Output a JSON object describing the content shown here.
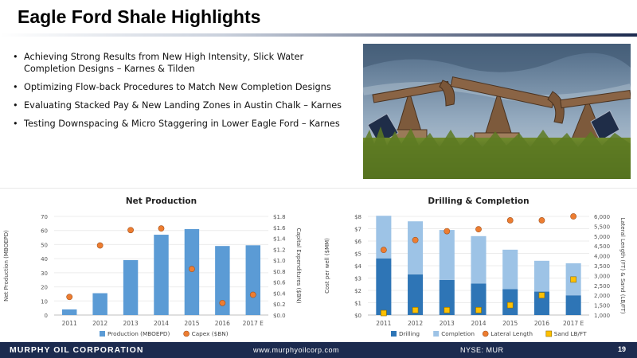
{
  "slide": {
    "title": "Eagle Ford Shale Highlights",
    "bullets": [
      "Achieving Strong Results from New High Intensity, Slick Water Completion Designs – Karnes & Tilden",
      "Optimizing Flow-back Procedures to Match New Completion Designs",
      "Evaluating Stacked Pay & New Landing Zones in Austin Chalk – Karnes",
      "Testing Downspacing & Micro Staggering in Lower Eagle Ford – Karnes"
    ]
  },
  "footer": {
    "company": "MURPHY OIL CORPORATION",
    "website": "www.murphyoilcorp.com",
    "ticker": "NYSE: MUR",
    "page": "19"
  },
  "colors": {
    "navy": "#1c2b4f",
    "bar_blue": "#5b9bd5",
    "dark_blue": "#2e75b6",
    "light_blue": "#9dc3e6",
    "orange": "#ed7d31",
    "yellow": "#ffc000"
  },
  "chart_data": [
    {
      "type": "bar",
      "title": "Net Production",
      "categories": [
        "2011",
        "2012",
        "2013",
        "2014",
        "2015",
        "2016",
        "2017 E"
      ],
      "ylabel": "Net Production (MBOEPD)",
      "y2label": "Capital Expenditures ($BN)",
      "ylim": [
        0,
        70
      ],
      "yticks": [
        "0",
        "10",
        "20",
        "30",
        "40",
        "50",
        "60",
        "70"
      ],
      "y2lim": [
        0,
        1.8
      ],
      "y2ticks": [
        "$0.0",
        "$0.2",
        "$0.4",
        "$0.6",
        "$0.8",
        "$1.0",
        "$1.2",
        "$1.4",
        "$1.6",
        "$1.8"
      ],
      "series": [
        {
          "name": "Production (MBOEPD)",
          "type": "bar",
          "axis": "left",
          "color": "#5b9bd5",
          "values": [
            4,
            15.5,
            39,
            57,
            61,
            49,
            49.5
          ]
        },
        {
          "name": "Capex ($BN)",
          "type": "scatter",
          "axis": "right",
          "color": "#ed7d31",
          "values": [
            0.33,
            1.27,
            1.55,
            1.58,
            0.84,
            0.22,
            0.37
          ]
        }
      ],
      "legend": "bottom"
    },
    {
      "type": "bar",
      "title": "Drilling & Completion",
      "categories": [
        "2011",
        "2012",
        "2013",
        "2014",
        "2015",
        "2016",
        "2017 E"
      ],
      "ylabel": "Cost per well ($MM)",
      "y2label": "Lateral Length (FT) & Sand (LB/FT)",
      "ylim": [
        0,
        8
      ],
      "yticks": [
        "$0",
        "$1",
        "$2",
        "$3",
        "$4",
        "$5",
        "$6",
        "$7",
        "$8"
      ],
      "y2lim": [
        1000,
        6000
      ],
      "y2ticks": [
        "1,000",
        "1,500",
        "2,000",
        "2,500",
        "3,000",
        "3,500",
        "4,000",
        "4,500",
        "5,000",
        "5,500",
        "6,000"
      ],
      "stacked": true,
      "series": [
        {
          "name": "Drilling",
          "type": "bar",
          "axis": "left",
          "color": "#2e75b6",
          "values": [
            4.6,
            3.3,
            2.85,
            2.55,
            2.1,
            1.9,
            1.6
          ]
        },
        {
          "name": "Completion",
          "type": "bar",
          "axis": "left",
          "color": "#9dc3e6",
          "values": [
            3.45,
            4.3,
            4.05,
            3.85,
            3.2,
            2.5,
            2.6
          ]
        },
        {
          "name": "Lateral Length",
          "type": "scatter",
          "axis": "right",
          "color": "#ed7d31",
          "values": [
            4300,
            4800,
            5250,
            5350,
            5800,
            5800,
            6000
          ]
        },
        {
          "name": "Sand LB/FT",
          "type": "scatter",
          "axis": "right",
          "color": "#ffc000",
          "values": [
            1100,
            1250,
            1250,
            1250,
            1500,
            2000,
            2800
          ]
        }
      ],
      "legend": "bottom"
    }
  ]
}
